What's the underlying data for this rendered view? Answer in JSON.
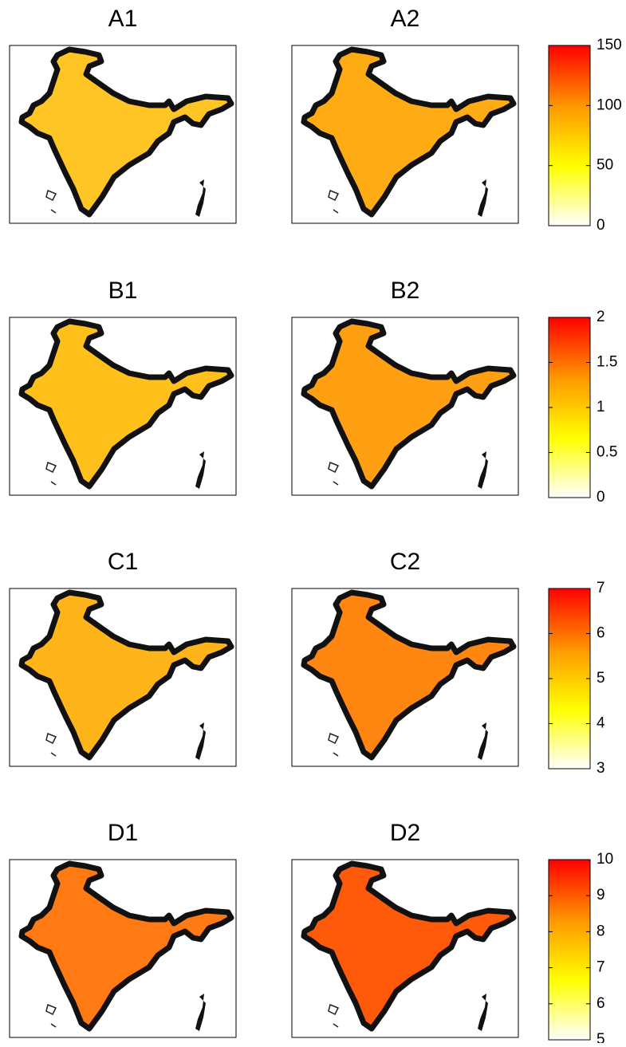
{
  "rows": [
    {
      "panels": [
        {
          "title": "A1",
          "color": "#ffc524"
        },
        {
          "title": "A2",
          "color": "#ffab14"
        }
      ],
      "colorbar": {
        "lim": [
          0,
          150
        ],
        "ticks": [
          0,
          50,
          100,
          150
        ]
      }
    },
    {
      "panels": [
        {
          "title": "B1",
          "color": "#ffc01c"
        },
        {
          "title": "B2",
          "color": "#ffa012"
        }
      ],
      "colorbar": {
        "lim": [
          0,
          2
        ],
        "ticks": [
          0,
          0.5,
          1,
          1.5,
          2
        ]
      }
    },
    {
      "panels": [
        {
          "title": "C1",
          "color": "#ffb41a"
        },
        {
          "title": "C2",
          "color": "#ff8610"
        }
      ],
      "colorbar": {
        "lim": [
          3,
          7
        ],
        "ticks": [
          3,
          4,
          5,
          6,
          7
        ]
      }
    },
    {
      "panels": [
        {
          "title": "D1",
          "color": "#ff7a12"
        },
        {
          "title": "D2",
          "color": "#ff5a0a"
        }
      ],
      "colorbar": {
        "lim": [
          5,
          10
        ],
        "ticks": [
          5,
          6,
          7,
          8,
          9,
          10
        ]
      }
    }
  ]
}
